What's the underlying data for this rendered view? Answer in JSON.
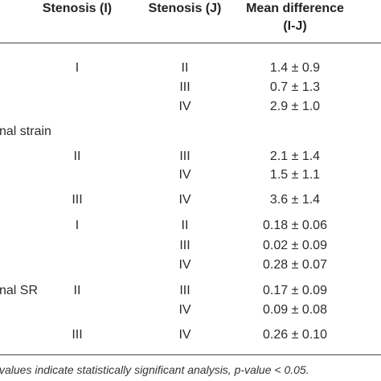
{
  "table": {
    "headers": {
      "stenosis_i": "Stenosis (I)",
      "stenosis_j": "Stenosis (J)",
      "mean_diff_line1": "Mean difference",
      "mean_diff_line2": "(I-J)"
    },
    "groups": [
      {
        "label": "",
        "partial_label_visible": false
      },
      {
        "label": "nal strain"
      },
      {
        "label": "nal SR"
      }
    ],
    "rows": [
      {
        "i": "I",
        "j": "II",
        "diff": "1.4 ± 0.9"
      },
      {
        "i": "",
        "j": "III",
        "diff": "0.7 ± 1.3"
      },
      {
        "i": "",
        "j": "IV",
        "diff": "2.9 ± 1.0"
      },
      {
        "i": "II",
        "j": "III",
        "diff": "2.1 ± 1.4"
      },
      {
        "i": "",
        "j": "IV",
        "diff": "1.5 ± 1.1"
      },
      {
        "i": "III",
        "j": "IV",
        "diff": "3.6 ± 1.4"
      },
      {
        "i": "I",
        "j": "II",
        "diff": "0.18 ± 0.06"
      },
      {
        "i": "",
        "j": "III",
        "diff": "0.02 ± 0.09"
      },
      {
        "i": "",
        "j": "IV",
        "diff": "0.28 ± 0.07"
      },
      {
        "i": "II",
        "j": "III",
        "diff": "0.17 ± 0.09"
      },
      {
        "i": "",
        "j": "IV",
        "diff": "0.09 ± 0.08"
      },
      {
        "i": "III",
        "j": "IV",
        "diff": "0.26 ± 0.10"
      }
    ]
  },
  "footnote": "values indicate statistically significant analysis, p-value < 0.05."
}
